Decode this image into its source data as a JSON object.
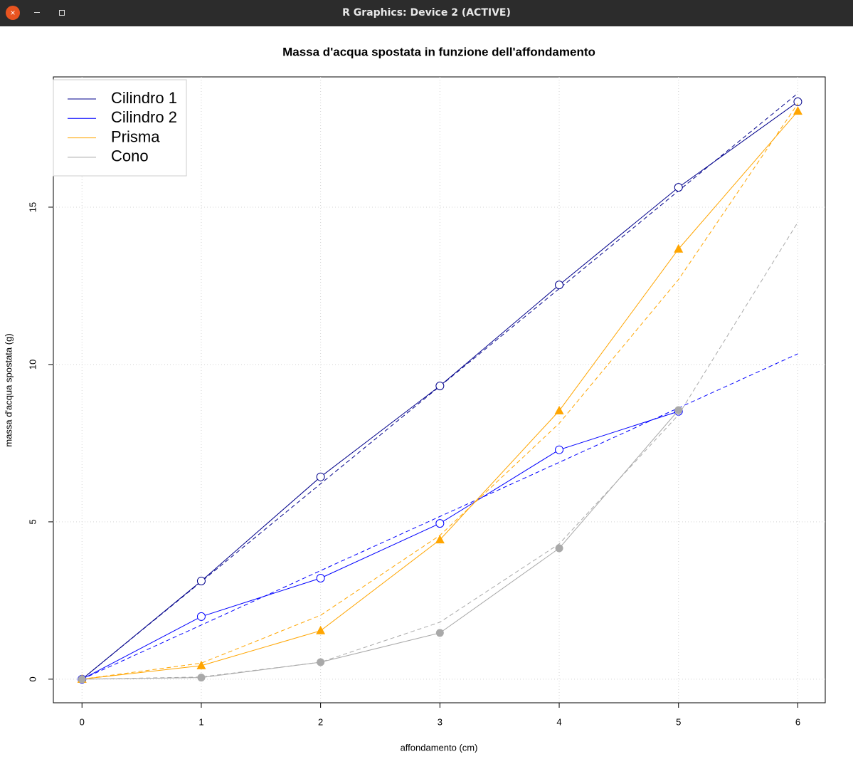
{
  "window_title": "R Graphics: Device 2 (ACTIVE)",
  "chart_data": {
    "type": "line",
    "title": "Massa d'acqua spostata in funzione dell'affondamento",
    "x_label": "affondamento (cm)",
    "y_label": "massa d'acqua spostata (g)",
    "x": [
      0,
      1,
      2,
      3,
      4,
      5,
      6
    ],
    "xlim": [
      -0.24,
      6.23
    ],
    "ylim": [
      -0.75,
      19.14
    ],
    "xticks": [
      0,
      1,
      2,
      3,
      4,
      5,
      6
    ],
    "yticks": [
      0,
      5,
      10,
      15
    ],
    "grid": true,
    "legend": "top-left",
    "series": [
      {
        "name": "Cilindro 1",
        "color": "#00008B",
        "marker": "open-circle",
        "values": [
          0,
          3.12,
          6.43,
          9.32,
          12.53,
          15.63,
          18.35
        ],
        "fit": [
          0,
          3.1,
          6.21,
          9.31,
          12.41,
          15.52,
          18.62
        ]
      },
      {
        "name": "Cilindro 2",
        "color": "#0000FF",
        "marker": "open-circle",
        "values": [
          0,
          1.99,
          3.21,
          4.95,
          7.29,
          8.51,
          null
        ],
        "fit": [
          0,
          1.72,
          3.45,
          5.17,
          6.89,
          8.62,
          10.34
        ]
      },
      {
        "name": "Prisma",
        "color": "#FFA500",
        "marker": "triangle",
        "values": [
          0,
          0.43,
          1.54,
          4.43,
          8.53,
          13.67,
          18.05
        ],
        "fit": [
          0,
          0.51,
          2.03,
          4.57,
          8.13,
          12.7,
          18.29
        ]
      },
      {
        "name": "Cono",
        "color": "#A9A9A9",
        "marker": "filled-circle",
        "values": [
          0,
          0.05,
          0.54,
          1.47,
          4.16,
          8.55,
          null
        ],
        "fit": [
          0,
          0.07,
          0.54,
          1.81,
          4.3,
          8.4,
          14.52
        ]
      }
    ]
  }
}
